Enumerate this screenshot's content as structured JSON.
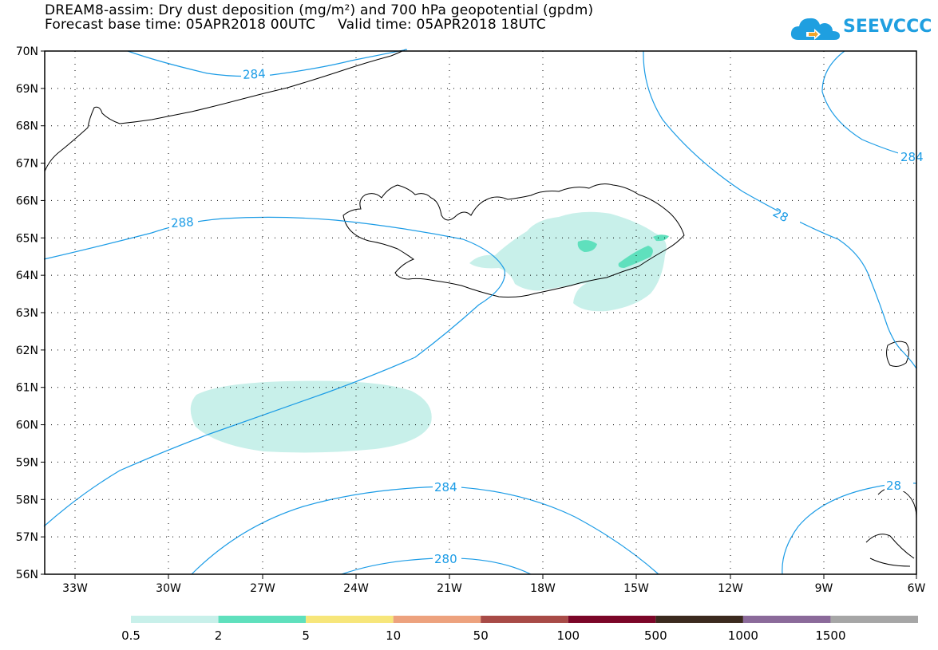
{
  "header": {
    "title_line1": "DREAM8-assim: Dry dust deposition (mg/m²) and 700 hPa geopotential (gpdm)",
    "title_line2": "Forecast base time: 05APR2018 00UTC     Valid time: 05APR2018 18UTC"
  },
  "logo": {
    "text": "SEEVCCC",
    "color": "#1f9fe0"
  },
  "map": {
    "lon_labels": [
      "33W",
      "30W",
      "27W",
      "24W",
      "21W",
      "18W",
      "15W",
      "12W",
      "9W",
      "6W"
    ],
    "lat_labels": [
      "70N",
      "69N",
      "68N",
      "67N",
      "66N",
      "65N",
      "64N",
      "63N",
      "62N",
      "61N",
      "60N",
      "59N",
      "58N",
      "57N",
      "56N"
    ],
    "contour_labels": [
      "284",
      "288",
      "284",
      "28",
      "284",
      "280",
      "28"
    ],
    "contour_color": "#1c9ce6"
  },
  "legend": {
    "labels": [
      "0.5",
      "2",
      "5",
      "10",
      "50",
      "100",
      "500",
      "1000",
      "1500"
    ],
    "colors": [
      "#c8f0ea",
      "#5fe0bd",
      "#f7e67a",
      "#eda27e",
      "#a84b47",
      "#7b0628",
      "#3b2a1e",
      "#8b6a9a",
      "#a6a6a6"
    ]
  }
}
